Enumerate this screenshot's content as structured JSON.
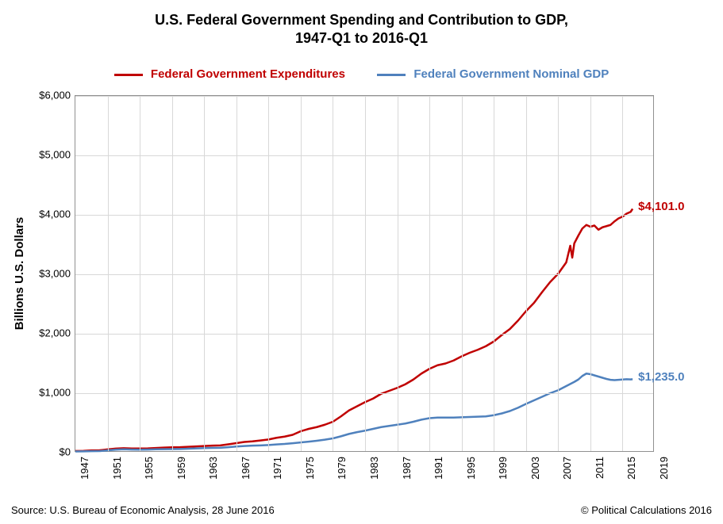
{
  "chart": {
    "type": "line",
    "title_line1": "U.S. Federal Government Spending and Contribution to GDP,",
    "title_line2": "1947-Q1 to 2016-Q1",
    "title_fontsize": 18,
    "ylabel": "Billions U.S. Dollars",
    "label_fontsize": 15,
    "source_text": "Source: U.S. Bureau of Economic Analysis, 28 June 2016",
    "attribution_text": "© Political Calculations 2016",
    "background_color": "#ffffff",
    "plot_border_color": "#909090",
    "grid_color": "#d8d8d8",
    "tick_fontsize": 13,
    "xlim": [
      1947,
      2019
    ],
    "ylim": [
      0,
      6000
    ],
    "ytick_step": 1000,
    "ytick_labels": [
      "$0",
      "$1,000",
      "$2,000",
      "$3,000",
      "$4,000",
      "$5,000",
      "$6,000"
    ],
    "xticks": [
      1947,
      1951,
      1955,
      1959,
      1963,
      1967,
      1971,
      1975,
      1979,
      1983,
      1987,
      1991,
      1995,
      1999,
      2003,
      2007,
      2011,
      2015,
      2019
    ],
    "legend": {
      "items": [
        {
          "label": "Federal Government Expenditures",
          "color": "#c00000"
        },
        {
          "label": "Federal Government Nominal GDP",
          "color": "#4f81bd"
        }
      ]
    },
    "series": [
      {
        "name": "Federal Government Expenditures",
        "color": "#c00000",
        "line_width": 2.5,
        "end_label": "$4,101.0",
        "end_label_color": "#c00000",
        "data": [
          [
            1947,
            28
          ],
          [
            1948,
            30
          ],
          [
            1949,
            38
          ],
          [
            1950,
            40
          ],
          [
            1951,
            55
          ],
          [
            1952,
            68
          ],
          [
            1953,
            75
          ],
          [
            1954,
            70
          ],
          [
            1955,
            70
          ],
          [
            1956,
            72
          ],
          [
            1957,
            78
          ],
          [
            1958,
            85
          ],
          [
            1959,
            90
          ],
          [
            1960,
            92
          ],
          [
            1961,
            98
          ],
          [
            1962,
            105
          ],
          [
            1963,
            112
          ],
          [
            1964,
            118
          ],
          [
            1965,
            122
          ],
          [
            1966,
            140
          ],
          [
            1967,
            160
          ],
          [
            1968,
            180
          ],
          [
            1969,
            190
          ],
          [
            1970,
            205
          ],
          [
            1971,
            222
          ],
          [
            1972,
            250
          ],
          [
            1973,
            270
          ],
          [
            1974,
            300
          ],
          [
            1975,
            360
          ],
          [
            1976,
            400
          ],
          [
            1977,
            430
          ],
          [
            1978,
            470
          ],
          [
            1979,
            520
          ],
          [
            1980,
            610
          ],
          [
            1981,
            710
          ],
          [
            1982,
            780
          ],
          [
            1983,
            850
          ],
          [
            1984,
            910
          ],
          [
            1985,
            990
          ],
          [
            1986,
            1040
          ],
          [
            1987,
            1090
          ],
          [
            1988,
            1150
          ],
          [
            1989,
            1230
          ],
          [
            1990,
            1330
          ],
          [
            1991,
            1410
          ],
          [
            1992,
            1470
          ],
          [
            1993,
            1500
          ],
          [
            1994,
            1550
          ],
          [
            1995,
            1620
          ],
          [
            1996,
            1680
          ],
          [
            1997,
            1730
          ],
          [
            1998,
            1790
          ],
          [
            1999,
            1870
          ],
          [
            2000,
            1980
          ],
          [
            2001,
            2080
          ],
          [
            2002,
            2220
          ],
          [
            2003,
            2380
          ],
          [
            2004,
            2520
          ],
          [
            2005,
            2700
          ],
          [
            2006,
            2870
          ],
          [
            2007,
            3010
          ],
          [
            2008,
            3200
          ],
          [
            2008.5,
            3480
          ],
          [
            2008.75,
            3280
          ],
          [
            2009,
            3520
          ],
          [
            2009.5,
            3650
          ],
          [
            2010,
            3770
          ],
          [
            2010.5,
            3830
          ],
          [
            2011,
            3800
          ],
          [
            2011.5,
            3820
          ],
          [
            2012,
            3750
          ],
          [
            2012.5,
            3790
          ],
          [
            2013,
            3810
          ],
          [
            2013.5,
            3830
          ],
          [
            2014,
            3890
          ],
          [
            2014.5,
            3940
          ],
          [
            2015,
            3970
          ],
          [
            2015.5,
            4020
          ],
          [
            2016,
            4050
          ],
          [
            2016.25,
            4101
          ]
        ]
      },
      {
        "name": "Federal Government Nominal GDP",
        "color": "#4f81bd",
        "line_width": 2.5,
        "end_label": "$1,235.0",
        "end_label_color": "#4f81bd",
        "data": [
          [
            1947,
            20
          ],
          [
            1948,
            22
          ],
          [
            1949,
            25
          ],
          [
            1950,
            26
          ],
          [
            1951,
            38
          ],
          [
            1952,
            50
          ],
          [
            1953,
            56
          ],
          [
            1954,
            52
          ],
          [
            1955,
            50
          ],
          [
            1956,
            52
          ],
          [
            1957,
            56
          ],
          [
            1958,
            58
          ],
          [
            1959,
            60
          ],
          [
            1960,
            62
          ],
          [
            1961,
            66
          ],
          [
            1962,
            72
          ],
          [
            1963,
            76
          ],
          [
            1964,
            80
          ],
          [
            1965,
            82
          ],
          [
            1966,
            92
          ],
          [
            1967,
            104
          ],
          [
            1968,
            112
          ],
          [
            1969,
            118
          ],
          [
            1970,
            122
          ],
          [
            1971,
            128
          ],
          [
            1972,
            138
          ],
          [
            1973,
            146
          ],
          [
            1974,
            158
          ],
          [
            1975,
            172
          ],
          [
            1976,
            185
          ],
          [
            1977,
            200
          ],
          [
            1978,
            218
          ],
          [
            1979,
            240
          ],
          [
            1980,
            275
          ],
          [
            1981,
            315
          ],
          [
            1982,
            345
          ],
          [
            1983,
            370
          ],
          [
            1984,
            400
          ],
          [
            1985,
            430
          ],
          [
            1986,
            450
          ],
          [
            1987,
            470
          ],
          [
            1988,
            490
          ],
          [
            1989,
            520
          ],
          [
            1990,
            555
          ],
          [
            1991,
            580
          ],
          [
            1992,
            590
          ],
          [
            1993,
            590
          ],
          [
            1994,
            590
          ],
          [
            1995,
            595
          ],
          [
            1996,
            600
          ],
          [
            1997,
            605
          ],
          [
            1998,
            610
          ],
          [
            1999,
            630
          ],
          [
            2000,
            660
          ],
          [
            2001,
            700
          ],
          [
            2002,
            755
          ],
          [
            2003,
            820
          ],
          [
            2004,
            880
          ],
          [
            2005,
            940
          ],
          [
            2006,
            1000
          ],
          [
            2007,
            1050
          ],
          [
            2008,
            1120
          ],
          [
            2009,
            1190
          ],
          [
            2009.5,
            1230
          ],
          [
            2010,
            1290
          ],
          [
            2010.5,
            1330
          ],
          [
            2011,
            1320
          ],
          [
            2011.5,
            1300
          ],
          [
            2012,
            1280
          ],
          [
            2012.5,
            1260
          ],
          [
            2013,
            1240
          ],
          [
            2013.5,
            1225
          ],
          [
            2014,
            1220
          ],
          [
            2014.5,
            1225
          ],
          [
            2015,
            1230
          ],
          [
            2015.5,
            1235
          ],
          [
            2016,
            1232
          ],
          [
            2016.25,
            1235
          ]
        ]
      }
    ]
  }
}
